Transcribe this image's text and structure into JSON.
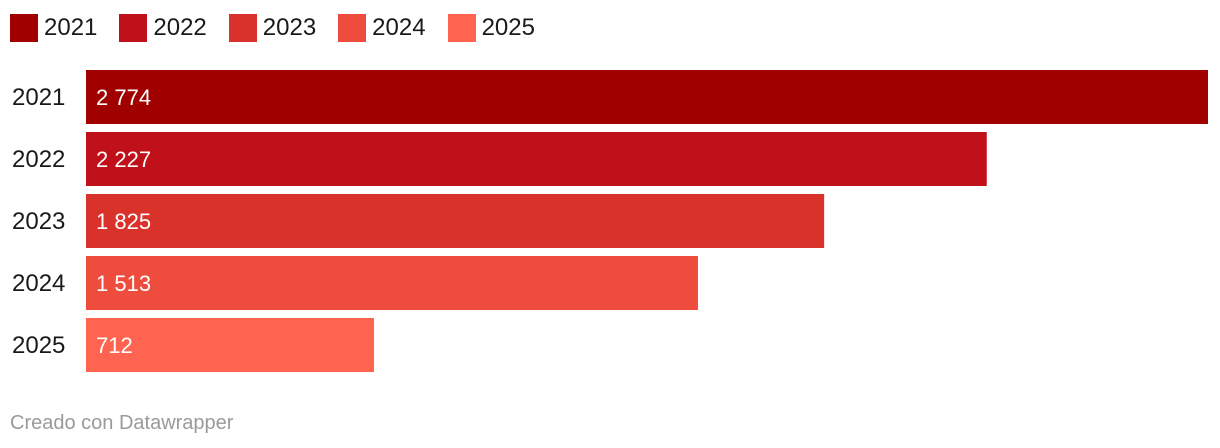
{
  "credit": "Creado con Datawrapper",
  "chart_data": {
    "type": "bar",
    "orientation": "horizontal",
    "categories": [
      "2021",
      "2022",
      "2023",
      "2024",
      "2025"
    ],
    "values": [
      2774,
      2227,
      1825,
      1513,
      712
    ],
    "value_labels": [
      "2 774",
      "2 227",
      "1 825",
      "1 513",
      "712"
    ],
    "colors": [
      "#a10000",
      "#c0101a",
      "#d9322b",
      "#ee4d3e",
      "#ff6450"
    ],
    "legend": {
      "position": "top-left",
      "entries": [
        "2021",
        "2022",
        "2023",
        "2024",
        "2025"
      ]
    },
    "xlim": [
      0,
      2774
    ],
    "grid": false,
    "title": "",
    "xlabel": "",
    "ylabel": ""
  }
}
